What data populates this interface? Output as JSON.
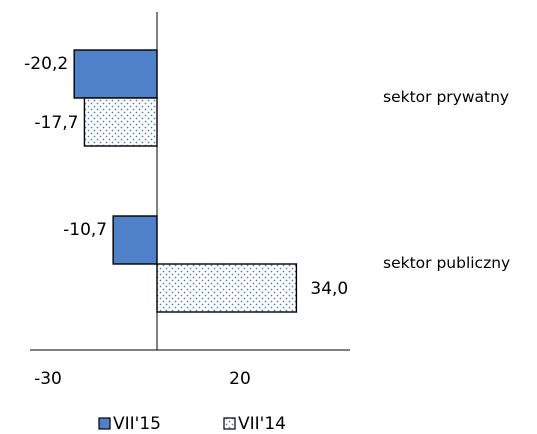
{
  "chart_data": {
    "type": "bar",
    "orientation": "horizontal",
    "categories": [
      "sektor prywatny",
      "sektor publiczny"
    ],
    "series": [
      {
        "name": "VII'15",
        "values": [
          -20.2,
          -10.7
        ],
        "labels": [
          "-20,2",
          "-10,7"
        ],
        "color": "#4f81c9",
        "pattern": "solid"
      },
      {
        "name": "VII'14",
        "values": [
          -17.7,
          34.0
        ],
        "labels": [
          "-17,7",
          "34,0"
        ],
        "color": "#ffffff",
        "pattern": "dots"
      }
    ],
    "xlim": [
      -30,
      50
    ],
    "xticks": [
      {
        "value": -30,
        "label": "-30"
      },
      {
        "value": 20,
        "label": "20"
      }
    ],
    "legend_position": "bottom",
    "title": "",
    "xlabel": "",
    "ylabel": ""
  }
}
